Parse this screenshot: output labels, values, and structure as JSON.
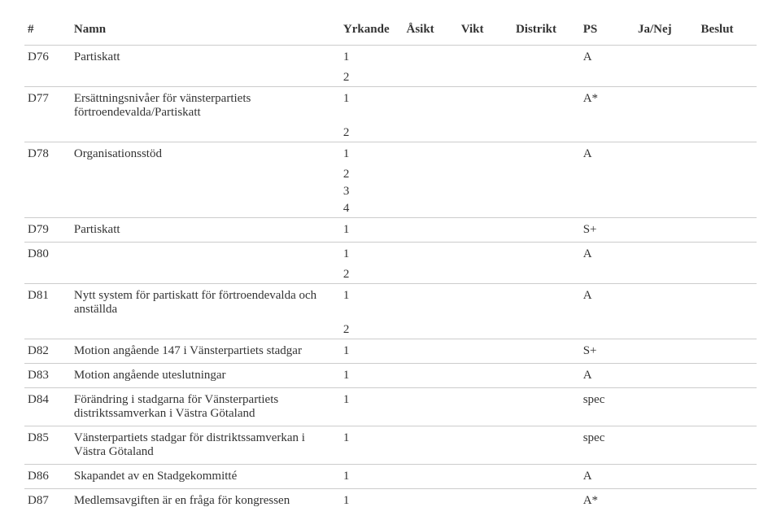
{
  "headers": {
    "hash": "#",
    "namn": "Namn",
    "yrkande": "Yrkande",
    "asikt": "Åsikt",
    "vikt": "Vikt",
    "distrikt": "Distrikt",
    "ps": "PS",
    "janej": "Ja/Nej",
    "beslut": "Beslut"
  },
  "rows": [
    {
      "id": "D76",
      "namn": "Partiskatt",
      "yrk": [
        "1",
        "2"
      ],
      "ps": "A"
    },
    {
      "id": "D77",
      "namn": "Ersättningsnivåer för vänsterpartiets förtroendevalda/Partiskatt",
      "yrk": [
        "1",
        "2"
      ],
      "ps": "A*"
    },
    {
      "id": "D78",
      "namn": "Organisationsstöd",
      "yrk": [
        "1",
        "2",
        "3",
        "4"
      ],
      "ps": "A"
    },
    {
      "id": "D79",
      "namn": "Partiskatt",
      "yrk": [
        "1"
      ],
      "ps": "S+"
    },
    {
      "id": "D80",
      "namn": "",
      "yrk": [
        "1",
        "2"
      ],
      "ps": "A"
    },
    {
      "id": "D81",
      "namn": "Nytt system för partiskatt för förtroendevalda och anställda",
      "yrk": [
        "1",
        "2"
      ],
      "ps": "A"
    },
    {
      "id": "D82",
      "namn": "Motion angående 147 i Vänsterpartiets stadgar",
      "yrk": [
        "1"
      ],
      "ps": "S+"
    },
    {
      "id": "D83",
      "namn": "Motion angående uteslutningar",
      "yrk": [
        "1"
      ],
      "ps": "A"
    },
    {
      "id": "D84",
      "namn": "Förändring i stadgarna för Vänsterpartiets distriktssamverkan i Västra Götaland",
      "yrk": [
        "1"
      ],
      "ps": "spec"
    },
    {
      "id": "D85",
      "namn": "Vänsterpartiets stadgar för distriktssamverkan i Västra Götaland",
      "yrk": [
        "1"
      ],
      "ps": "spec"
    },
    {
      "id": "D86",
      "namn": "Skapandet av en Stadgekommitté",
      "yrk": [
        "1"
      ],
      "ps": "A"
    },
    {
      "id": "D87",
      "namn": "Medlemsavgiften är en fråga för kongressen",
      "yrk": [
        "1"
      ],
      "ps": "A*"
    }
  ],
  "style": {
    "background": "#ffffff",
    "text_color": "#333333",
    "border_color": "#cccccc",
    "font_family": "Georgia, 'Times New Roman', serif",
    "font_size_pt": 11
  }
}
